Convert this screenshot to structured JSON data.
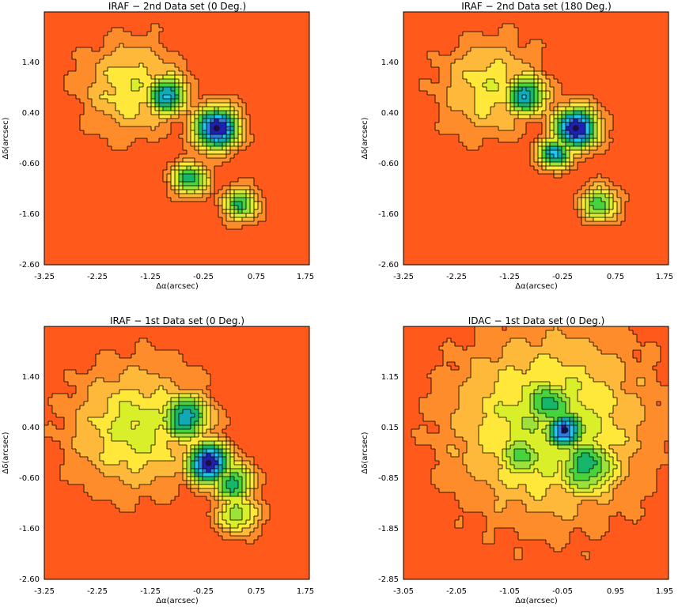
{
  "figure": {
    "colors": {
      "background": "#ffffff",
      "frame": "#000000",
      "contour": "#000000",
      "colormap": [
        "#ff5a1c",
        "#ff8c2a",
        "#ffb93a",
        "#ffe83a",
        "#d8ef2a",
        "#9ce23a",
        "#46d33c",
        "#17b66a",
        "#10a9b6",
        "#1dc9f0",
        "#2f7be2",
        "#2020b0"
      ]
    },
    "panel_titles": [
      "IRAF − 2nd Data set (0 Deg.)",
      "IRAF − 2nd Data set (180 Deg.)",
      "IRAF − 1st Data set (0 Deg.)",
      "IDAC − 1st Data set (0 Deg.)"
    ]
  },
  "chart_data": [
    {
      "type": "heatmap",
      "title": "IRAF − 2nd Data set (0 Deg.)",
      "xlabel": "Δα(arcsec)",
      "ylabel": "Δδ(arcsec)",
      "xlim": [
        -3.25,
        1.75
      ],
      "ylim": [
        -2.6,
        2.4
      ],
      "xticks": [
        "-3.25",
        "-2.25",
        "-1.25",
        "-0.25",
        "0.75",
        "1.75"
      ],
      "yticks": [
        "-2.60",
        "-1.60",
        "-0.60",
        "0.40",
        "1.40"
      ],
      "colormap": "red-orange-yellow-green-cyan-blue (filled contours, black contour lines)",
      "peak": [
        0.0,
        0.1
      ],
      "features": [
        {
          "x": 0.0,
          "y": 0.1,
          "level": 1.0,
          "width": 0.3
        },
        {
          "x": -0.95,
          "y": 0.75,
          "level": 0.7,
          "width": 0.3
        },
        {
          "x": -0.5,
          "y": -0.9,
          "level": 0.6,
          "width": 0.25
        },
        {
          "x": 0.45,
          "y": -1.4,
          "level": 0.55,
          "width": 0.25
        },
        {
          "x": -1.6,
          "y": 0.9,
          "level": 0.3,
          "width": 0.7
        }
      ]
    },
    {
      "type": "heatmap",
      "title": "IRAF − 2nd Data set (180 Deg.)",
      "xlabel": "Δα(arcsec)",
      "ylabel": "Δδ(arcsec)",
      "xlim": [
        -3.25,
        1.75
      ],
      "ylim": [
        -2.6,
        2.4
      ],
      "xticks": [
        "-3.25",
        "-2.25",
        "-1.25",
        "-0.25",
        "0.75",
        "1.75"
      ],
      "yticks": [
        "-2.60",
        "-1.60",
        "-0.60",
        "0.40",
        "1.40"
      ],
      "colormap": "red-orange-yellow-green-cyan-blue (filled contours, black contour lines)",
      "peak": [
        0.0,
        0.1
      ],
      "features": [
        {
          "x": 0.0,
          "y": 0.1,
          "level": 1.0,
          "width": 0.3
        },
        {
          "x": -0.95,
          "y": 0.75,
          "level": 0.7,
          "width": 0.3
        },
        {
          "x": -0.4,
          "y": -0.4,
          "level": 0.75,
          "width": 0.22
        },
        {
          "x": 0.45,
          "y": -1.4,
          "level": 0.55,
          "width": 0.25
        },
        {
          "x": -1.6,
          "y": 0.9,
          "level": 0.3,
          "width": 0.7
        }
      ]
    },
    {
      "type": "heatmap",
      "title": "IRAF − 1st Data set (0 Deg.)",
      "xlabel": "Δα(arcsec)",
      "ylabel": "Δδ(arcsec)",
      "xlim": [
        -3.25,
        1.75
      ],
      "ylim": [
        -2.6,
        2.4
      ],
      "xticks": [
        "-3.25",
        "-2.25",
        "-1.25",
        "-0.25",
        "0.75",
        "1.75"
      ],
      "yticks": [
        "-2.60",
        "-1.60",
        "-0.60",
        "0.40",
        "1.40"
      ],
      "colormap": "red-orange-yellow-green-cyan-blue (filled contours, black contour lines)",
      "peak": [
        -0.15,
        -0.3
      ],
      "features": [
        {
          "x": -0.15,
          "y": -0.3,
          "level": 1.0,
          "width": 0.3
        },
        {
          "x": -0.6,
          "y": 0.6,
          "level": 0.7,
          "width": 0.35
        },
        {
          "x": 0.3,
          "y": -0.7,
          "level": 0.6,
          "width": 0.3
        },
        {
          "x": 0.4,
          "y": -1.3,
          "level": 0.45,
          "width": 0.3
        },
        {
          "x": -1.5,
          "y": 0.4,
          "level": 0.35,
          "width": 0.9
        }
      ]
    },
    {
      "type": "heatmap",
      "title": "IDAC − 1st Data set (0 Deg.)",
      "xlabel": "Δα(arcsec)",
      "ylabel": "Δδ(arcsec)",
      "xlim": [
        -3.05,
        1.95
      ],
      "ylim": [
        -2.85,
        2.15
      ],
      "xticks": [
        "-3.05",
        "-2.05",
        "-1.05",
        "-0.05",
        "0.95",
        "1.95"
      ],
      "yticks": [
        "-2.85",
        "-1.85",
        "-0.85",
        "0.15",
        "1.15"
      ],
      "colormap": "red-orange-yellow-green-cyan-blue (filled contours, black contour lines)",
      "peak": [
        0.0,
        0.1
      ],
      "features": [
        {
          "x": 0.0,
          "y": 0.1,
          "level": 0.9,
          "width": 0.28
        },
        {
          "x": -0.3,
          "y": 0.6,
          "level": 0.6,
          "width": 0.4
        },
        {
          "x": 0.4,
          "y": -0.6,
          "level": 0.6,
          "width": 0.45
        },
        {
          "x": -0.8,
          "y": -0.4,
          "level": 0.5,
          "width": 0.4
        },
        {
          "x": -0.3,
          "y": 0.2,
          "level": 0.4,
          "width": 1.3
        }
      ]
    }
  ]
}
